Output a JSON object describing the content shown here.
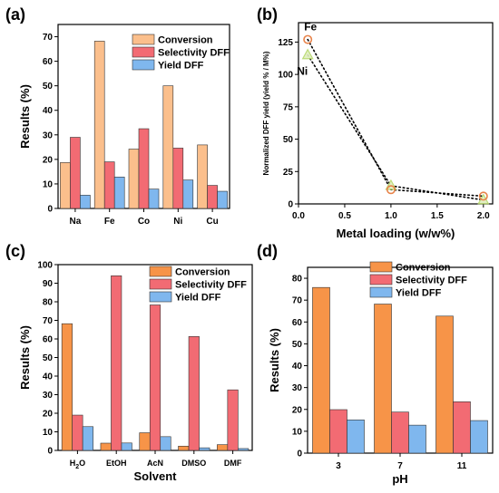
{
  "chart_data": [
    {
      "panel": "(a)",
      "type": "bar",
      "categories": [
        "Na",
        "Fe",
        "Co",
        "Ni",
        "Cu"
      ],
      "series": [
        {
          "name": "Conversion",
          "values": [
            18.7,
            68.2,
            24.2,
            50.0,
            25.9
          ]
        },
        {
          "name": "Selectivity DFF",
          "values": [
            29.0,
            19.0,
            32.5,
            24.6,
            9.4
          ]
        },
        {
          "name": "Yield DFF",
          "values": [
            5.4,
            12.8,
            7.9,
            11.6,
            7.0
          ]
        }
      ],
      "xlabel": "",
      "ylabel": "Results (%)",
      "ylim": [
        0,
        75
      ],
      "yticks": [
        0,
        10,
        20,
        30,
        40,
        50,
        60,
        70
      ],
      "colors": [
        "#fbbf8c",
        "#f26b73",
        "#7fb7ee"
      ],
      "legend": "top-right"
    },
    {
      "panel": "(b)",
      "type": "scatter",
      "series": [
        {
          "name": "Fe",
          "x": [
            0.1,
            1.0,
            2.0
          ],
          "y": [
            127,
            11,
            6
          ]
        },
        {
          "name": "Ni",
          "x": [
            0.1,
            1.0,
            2.0
          ],
          "y": [
            115,
            14,
            3
          ]
        }
      ],
      "annotations": [
        "Fe",
        "Ni"
      ],
      "xlabel": "Metal loading (w/w%)",
      "ylabel": "Normalized DFF yield (yield % / M%)",
      "xlim": [
        0,
        2.1
      ],
      "ylim": [
        0,
        140
      ],
      "xticks": [
        "0.0",
        "0.5",
        "1.0",
        "1.5",
        "2.0"
      ],
      "yticks": [
        0,
        25,
        50,
        75,
        100,
        125
      ],
      "colors": [
        "#e8834a",
        "#b5d86a"
      ]
    },
    {
      "panel": "(c)",
      "type": "bar",
      "categories": [
        "H2O",
        "EtOH",
        "AcN",
        "DMSO",
        "DMF"
      ],
      "category_labels": [
        {
          "base": "H",
          "sub": "2",
          "rest": "O"
        },
        {
          "base": "EtOH",
          "sub": "",
          "rest": ""
        },
        {
          "base": "AcN",
          "sub": "",
          "rest": ""
        },
        {
          "base": "DMSO",
          "sub": "",
          "rest": ""
        },
        {
          "base": "DMF",
          "sub": "",
          "rest": ""
        }
      ],
      "series": [
        {
          "name": "Conversion",
          "values": [
            68.2,
            3.9,
            9.5,
            2.3,
            3.1
          ]
        },
        {
          "name": "Selectivity DFF",
          "values": [
            19.0,
            94.0,
            78.3,
            61.3,
            32.6
          ]
        },
        {
          "name": "Yield DFF",
          "values": [
            12.8,
            4.0,
            7.4,
            1.4,
            1.0
          ]
        }
      ],
      "xlabel": "Solvent",
      "ylabel": "Results (%)",
      "ylim": [
        0,
        100
      ],
      "yticks": [
        0,
        10,
        20,
        30,
        40,
        50,
        60,
        70,
        80,
        90,
        100
      ],
      "colors": [
        "#f79448",
        "#f26b73",
        "#7fb7ee"
      ],
      "legend": "top-right"
    },
    {
      "panel": "(d)",
      "type": "bar",
      "categories": [
        "3",
        "7",
        "11"
      ],
      "series": [
        {
          "name": "Conversion",
          "values": [
            75.8,
            68.2,
            62.7
          ]
        },
        {
          "name": "Selectivity DFF",
          "values": [
            19.9,
            18.8,
            23.5
          ]
        },
        {
          "name": "Yield DFF",
          "values": [
            15.2,
            12.8,
            14.9
          ]
        }
      ],
      "xlabel": "pH",
      "ylabel": "Results (%)",
      "ylim": [
        0,
        85
      ],
      "yticks": [
        0,
        10,
        20,
        30,
        40,
        50,
        60,
        70,
        80
      ],
      "colors": [
        "#f79448",
        "#f26b73",
        "#7fb7ee"
      ],
      "legend": "top-right"
    }
  ]
}
